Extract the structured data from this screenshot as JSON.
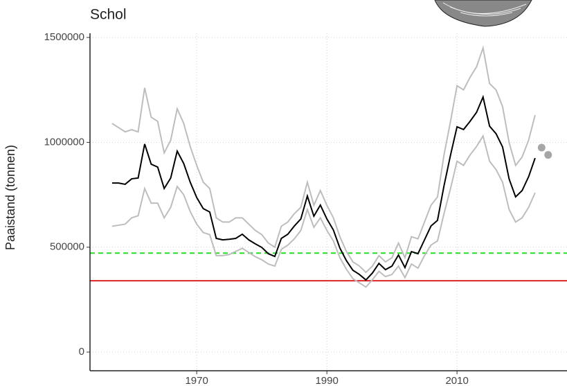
{
  "chart_data": {
    "type": "line",
    "title": "Schol",
    "y_label": "Paaistand (tonnen)",
    "x": [
      1957,
      1958,
      1959,
      1960,
      1961,
      1962,
      1963,
      1964,
      1965,
      1966,
      1967,
      1968,
      1969,
      1970,
      1971,
      1972,
      1973,
      1974,
      1975,
      1976,
      1977,
      1978,
      1979,
      1980,
      1981,
      1982,
      1983,
      1984,
      1985,
      1986,
      1987,
      1988,
      1989,
      1990,
      1991,
      1992,
      1993,
      1994,
      1995,
      1996,
      1997,
      1998,
      1999,
      2000,
      2001,
      2002,
      2003,
      2004,
      2005,
      2006,
      2007,
      2008,
      2009,
      2010,
      2011,
      2012,
      2013,
      2014,
      2015,
      2016,
      2017,
      2018,
      2019,
      2020,
      2021,
      2022
    ],
    "series": [
      {
        "color": "#bdbdbd",
        "values": [
          1090000,
          1070000,
          1050000,
          1060000,
          1050000,
          1260000,
          1120000,
          1100000,
          950000,
          1010000,
          1160000,
          1090000,
          980000,
          890000,
          810000,
          780000,
          640000,
          620000,
          620000,
          640000,
          640000,
          610000,
          580000,
          560000,
          520000,
          500000,
          600000,
          620000,
          660000,
          690000,
          810000,
          700000,
          770000,
          700000,
          640000,
          550000,
          480000,
          430000,
          410000,
          380000,
          410000,
          460000,
          430000,
          450000,
          520000,
          450000,
          550000,
          540000,
          620000,
          700000,
          740000,
          940000,
          1100000,
          1270000,
          1250000,
          1310000,
          1360000,
          1450000,
          1280000,
          1250000,
          1170000,
          1000000,
          890000,
          930000,
          1010000,
          1130000
        ]
      },
      {
        "color": "#bdbdbd",
        "values": [
          600000,
          605000,
          610000,
          640000,
          650000,
          780000,
          710000,
          710000,
          640000,
          690000,
          790000,
          750000,
          670000,
          610000,
          570000,
          560000,
          460000,
          460000,
          465000,
          480000,
          495000,
          475000,
          455000,
          440000,
          420000,
          410000,
          490000,
          510000,
          540000,
          580000,
          680000,
          595000,
          640000,
          580000,
          530000,
          450000,
          395000,
          350000,
          330000,
          310000,
          345000,
          385000,
          360000,
          370000,
          410000,
          355000,
          420000,
          400000,
          460000,
          510000,
          530000,
          660000,
          780000,
          910000,
          890000,
          940000,
          980000,
          1030000,
          910000,
          870000,
          810000,
          680000,
          620000,
          640000,
          690000,
          760000
        ]
      },
      {
        "color": "#000000",
        "values": [
          806000,
          806000,
          800000,
          826000,
          830000,
          992000,
          896000,
          882000,
          780000,
          830000,
          958000,
          899000,
          810000,
          737000,
          684000,
          668000,
          542000,
          535000,
          538000,
          542000,
          562000,
          535000,
          516000,
          499000,
          469000,
          456000,
          542000,
          562000,
          601000,
          635000,
          744000,
          648000,
          701000,
          635000,
          582000,
          496000,
          436000,
          390000,
          370000,
          344000,
          377000,
          423000,
          393000,
          410000,
          463000,
          403000,
          479000,
          469000,
          535000,
          601000,
          628000,
          793000,
          939000,
          1074000,
          1061000,
          1100000,
          1143000,
          1216000,
          1077000,
          1041000,
          978000,
          826000,
          740000,
          770000,
          836000,
          925000
        ]
      }
    ],
    "points": {
      "color": "#a6a6a6",
      "x": [
        2023,
        2024
      ],
      "values": [
        975000,
        940000
      ]
    },
    "hlines": [
      {
        "value": 472000,
        "color": "#22dd22",
        "dashed": true
      },
      {
        "value": 340000,
        "color": "#dd2222",
        "dashed": false
      }
    ],
    "xlim": [
      1953.6,
      2026.9
    ],
    "ylim": [
      -89000,
      1520000
    ],
    "xticks": [
      1970,
      1990,
      2010
    ],
    "yticks": [
      0,
      500000,
      1000000,
      1500000
    ],
    "grid": true
  }
}
